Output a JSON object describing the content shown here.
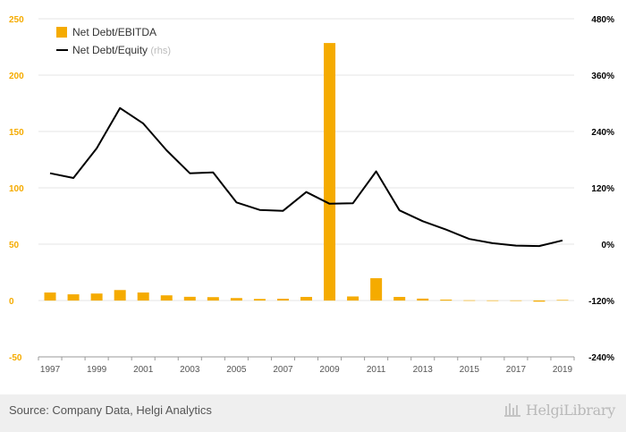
{
  "chart_data": {
    "type": "bar",
    "x": [
      "1997",
      "1998",
      "1999",
      "2000",
      "2001",
      "2002",
      "2003",
      "2004",
      "2005",
      "2006",
      "2007",
      "2008",
      "2009",
      "2010",
      "2011",
      "2012",
      "2013",
      "2014",
      "2015",
      "2016",
      "2017",
      "2018",
      "2019"
    ],
    "xticks": [
      "1997",
      "1999",
      "2001",
      "2003",
      "2005",
      "2007",
      "2009",
      "2011",
      "2013",
      "2015",
      "2017",
      "2019"
    ],
    "series": [
      {
        "name": "Net Debt/EBITDA",
        "type": "bar",
        "axis": "left",
        "color": "#f5ab00",
        "values": [
          7.1,
          5.5,
          6.2,
          9.3,
          7.1,
          4.6,
          3.3,
          3.0,
          2.2,
          1.4,
          1.6,
          3.2,
          228.5,
          3.6,
          19.8,
          3.2,
          1.7,
          0.8,
          0.2,
          0.1,
          0.1,
          -1.0,
          0.5
        ]
      },
      {
        "name": "Net Debt/Equity",
        "name_suffix": "(rhs)",
        "type": "line",
        "axis": "right",
        "color": "#000000",
        "values": [
          151,
          141,
          204,
          290,
          257,
          200,
          151,
          153,
          89,
          73,
          71,
          111,
          86,
          87,
          155,
          72,
          49,
          31,
          11,
          2,
          -3,
          -4,
          8
        ]
      }
    ],
    "y_left": {
      "ticks": [
        "250",
        "200",
        "150",
        "100",
        "50",
        "0",
        "-50"
      ],
      "range": [
        -50,
        250
      ]
    },
    "y_right": {
      "ticks": [
        "480%",
        "360%",
        "240%",
        "120%",
        "0%",
        "-120%",
        "-240%"
      ],
      "range": [
        -240,
        480
      ]
    },
    "grid": true,
    "legend_position": "top-left"
  },
  "footer": {
    "source": "Source: Company Data, Helgi Analytics",
    "brand": "HelgiLibrary"
  }
}
